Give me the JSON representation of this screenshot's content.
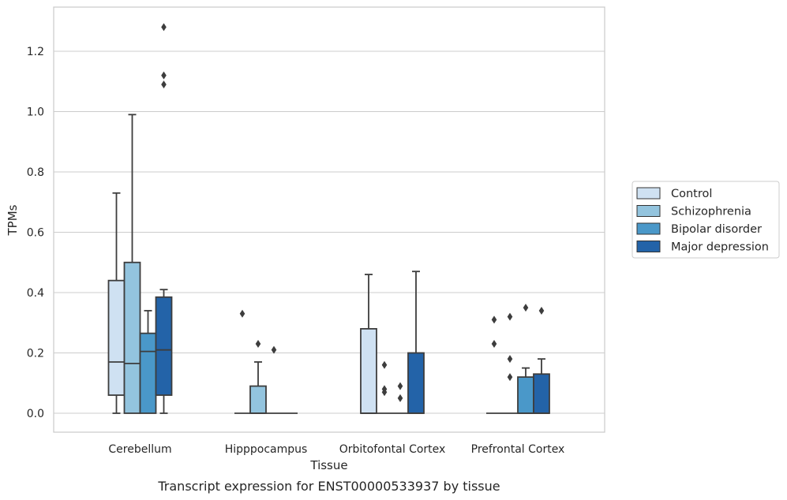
{
  "chart_data": {
    "type": "box",
    "title": "",
    "caption": "Transcript expression for ENST00000533937 by tissue",
    "xlabel": "Tissue",
    "ylabel": "TPMs",
    "ylim": [
      -0.065,
      1.35
    ],
    "yticks": [
      "0.0",
      "0.2",
      "0.4",
      "0.6",
      "0.8",
      "1.0",
      "1.2"
    ],
    "ytick_values": [
      0,
      0.2,
      0.4,
      0.6,
      0.8,
      1.0,
      1.2
    ],
    "grid": "horizontal",
    "legend_position": "right",
    "categories": [
      "Cerebellum",
      "Hipppocampus",
      "Orbitofontal Cortex",
      "Prefrontal Cortex"
    ],
    "series": [
      {
        "name": "Control",
        "color": "#cfe1f2",
        "boxes": [
          {
            "whislo": 0.0,
            "q1": 0.06,
            "med": 0.17,
            "q3": 0.44,
            "whishi": 0.73,
            "fliers": []
          },
          {
            "whislo": 0.0,
            "q1": 0.0,
            "med": 0.0,
            "q3": 0.0,
            "whishi": 0.0,
            "fliers": [
              0.33
            ]
          },
          {
            "whislo": 0.0,
            "q1": 0.0,
            "med": 0.0,
            "q3": 0.28,
            "whishi": 0.46,
            "fliers": []
          },
          {
            "whislo": 0.0,
            "q1": 0.0,
            "med": 0.0,
            "q3": 0.0,
            "whishi": 0.0,
            "fliers": [
              0.23,
              0.31
            ]
          }
        ]
      },
      {
        "name": "Schizophrenia",
        "color": "#93c4de",
        "boxes": [
          {
            "whislo": 0.0,
            "q1": 0.0,
            "med": 0.165,
            "q3": 0.5,
            "whishi": 0.99,
            "fliers": []
          },
          {
            "whislo": 0.0,
            "q1": 0.0,
            "med": 0.0,
            "q3": 0.09,
            "whishi": 0.17,
            "fliers": [
              0.23
            ]
          },
          {
            "whislo": 0.0,
            "q1": 0.0,
            "med": 0.0,
            "q3": 0.0,
            "whishi": 0.0,
            "fliers": [
              0.07,
              0.08,
              0.16
            ]
          },
          {
            "whislo": 0.0,
            "q1": 0.0,
            "med": 0.0,
            "q3": 0.0,
            "whishi": 0.0,
            "fliers": [
              0.12,
              0.18,
              0.32
            ]
          }
        ]
      },
      {
        "name": "Bipolar disorder",
        "color": "#4a98c9",
        "boxes": [
          {
            "whislo": 0.0,
            "q1": 0.0,
            "med": 0.205,
            "q3": 0.265,
            "whishi": 0.34,
            "fliers": []
          },
          {
            "whislo": 0.0,
            "q1": 0.0,
            "med": 0.0,
            "q3": 0.0,
            "whishi": 0.0,
            "fliers": [
              0.21
            ]
          },
          {
            "whislo": 0.0,
            "q1": 0.0,
            "med": 0.0,
            "q3": 0.0,
            "whishi": 0.0,
            "fliers": [
              0.05,
              0.09
            ]
          },
          {
            "whislo": 0.0,
            "q1": 0.0,
            "med": 0.0,
            "q3": 0.12,
            "whishi": 0.15,
            "fliers": [
              0.35
            ]
          }
        ]
      },
      {
        "name": "Major depression",
        "color": "#2363a8",
        "boxes": [
          {
            "whislo": 0.0,
            "q1": 0.06,
            "med": 0.21,
            "q3": 0.385,
            "whishi": 0.41,
            "fliers": [
              1.09,
              1.12,
              1.28
            ]
          },
          {
            "whislo": 0.0,
            "q1": 0.0,
            "med": 0.0,
            "q3": 0.0,
            "whishi": 0.0,
            "fliers": []
          },
          {
            "whislo": 0.0,
            "q1": 0.0,
            "med": 0.0,
            "q3": 0.2,
            "whishi": 0.47,
            "fliers": []
          },
          {
            "whislo": 0.0,
            "q1": 0.0,
            "med": 0.0,
            "q3": 0.13,
            "whishi": 0.18,
            "fliers": [
              0.34
            ]
          }
        ]
      }
    ]
  },
  "style": {
    "line_color": "#3d3d3d",
    "grid_color": "#cccccc",
    "frame_color": "#cccccc"
  }
}
